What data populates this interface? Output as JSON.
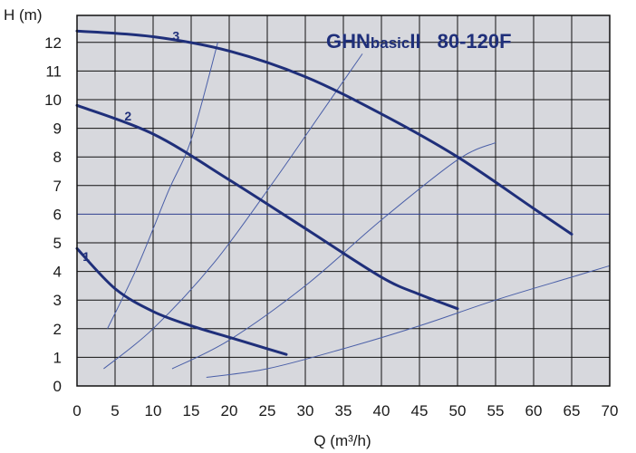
{
  "chart_data": {
    "type": "line",
    "title": {
      "main": "GHN",
      "small": "basic",
      "suffix": "II",
      "model": "80-120F"
    },
    "xlabel": "Q (m³/h)",
    "ylabel": "H (m)",
    "xlim": [
      0,
      70
    ],
    "ylim": [
      0,
      12.5
    ],
    "xticks": [
      "0",
      "5",
      "10",
      "15",
      "20",
      "25",
      "30",
      "35",
      "40",
      "45",
      "50",
      "55",
      "60",
      "65",
      "70"
    ],
    "yticks": [
      "0",
      "1",
      "2",
      "3",
      "4",
      "5",
      "6",
      "7",
      "8",
      "9",
      "10",
      "11",
      "12"
    ],
    "grid": true,
    "colors": {
      "curve": "#1f2f7a",
      "thin": "#4a5fa8",
      "grid": "#111111",
      "accent_grid": "#2f3f8f",
      "background": "#d7d8dd"
    },
    "series": [
      {
        "name": "1",
        "points": [
          [
            0,
            4.8
          ],
          [
            5,
            3.4
          ],
          [
            10,
            2.6
          ],
          [
            15,
            2.1
          ],
          [
            20,
            1.7
          ],
          [
            25,
            1.3
          ],
          [
            27.5,
            1.1
          ]
        ]
      },
      {
        "name": "2",
        "points": [
          [
            0,
            9.8
          ],
          [
            10,
            8.8
          ],
          [
            20,
            7.2
          ],
          [
            30,
            5.5
          ],
          [
            40,
            3.8
          ],
          [
            45,
            3.2
          ],
          [
            50,
            2.7
          ]
        ]
      },
      {
        "name": "3",
        "points": [
          [
            0,
            12.4
          ],
          [
            10,
            12.2
          ],
          [
            20,
            11.7
          ],
          [
            30,
            10.8
          ],
          [
            40,
            9.5
          ],
          [
            50,
            8.0
          ],
          [
            60,
            6.2
          ],
          [
            65,
            5.3
          ]
        ]
      }
    ],
    "system_curves": [
      {
        "points": [
          [
            4,
            2.0
          ],
          [
            8,
            4.2
          ],
          [
            12,
            6.8
          ],
          [
            15,
            8.6
          ],
          [
            18.5,
            12.0
          ]
        ]
      },
      {
        "points": [
          [
            3.5,
            0.6
          ],
          [
            10,
            2.0
          ],
          [
            18,
            4.3
          ],
          [
            26,
            7.2
          ],
          [
            32,
            9.5
          ],
          [
            37.5,
            11.6
          ]
        ]
      },
      {
        "points": [
          [
            12.5,
            0.6
          ],
          [
            20,
            1.6
          ],
          [
            30,
            3.5
          ],
          [
            40,
            5.8
          ],
          [
            50,
            7.9
          ],
          [
            55,
            8.5
          ]
        ]
      },
      {
        "points": [
          [
            17,
            0.3
          ],
          [
            25,
            0.6
          ],
          [
            35,
            1.3
          ],
          [
            45,
            2.1
          ],
          [
            55,
            3.0
          ],
          [
            65,
            3.8
          ],
          [
            70,
            4.2
          ]
        ]
      }
    ]
  }
}
